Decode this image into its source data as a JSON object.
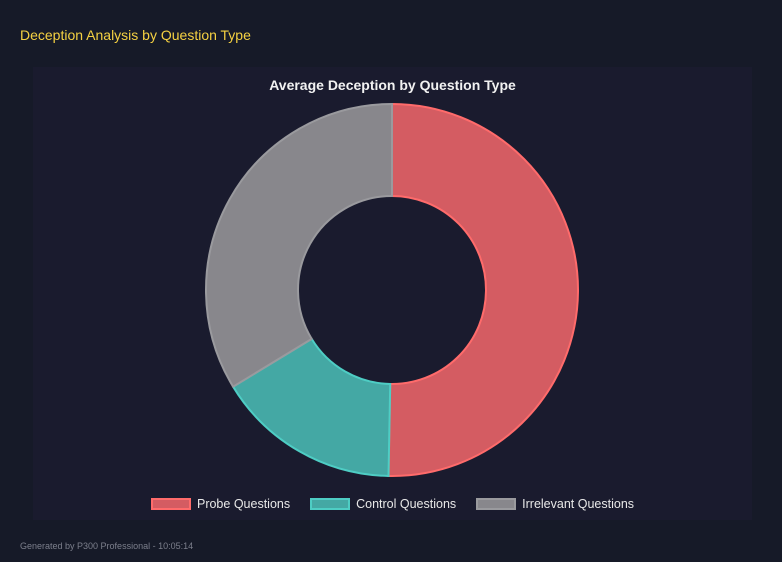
{
  "header": {
    "title": "Deception Analysis by Question Type"
  },
  "footer": {
    "text": "Generated by P300 Professional - 10:05:14"
  },
  "chart_data": {
    "type": "doughnut",
    "title": "Average Deception by Question Type",
    "categories": [
      "Probe Questions",
      "Control Questions",
      "Irrelevant Questions"
    ],
    "values": [
      50.3,
      16.0,
      33.7
    ],
    "colors": [
      "#d45c62",
      "#44a8a4",
      "#88878c"
    ],
    "border_colors": [
      "#ff6b6b",
      "#4ecdc4",
      "#9a9a9e"
    ],
    "legend": "bottom"
  }
}
